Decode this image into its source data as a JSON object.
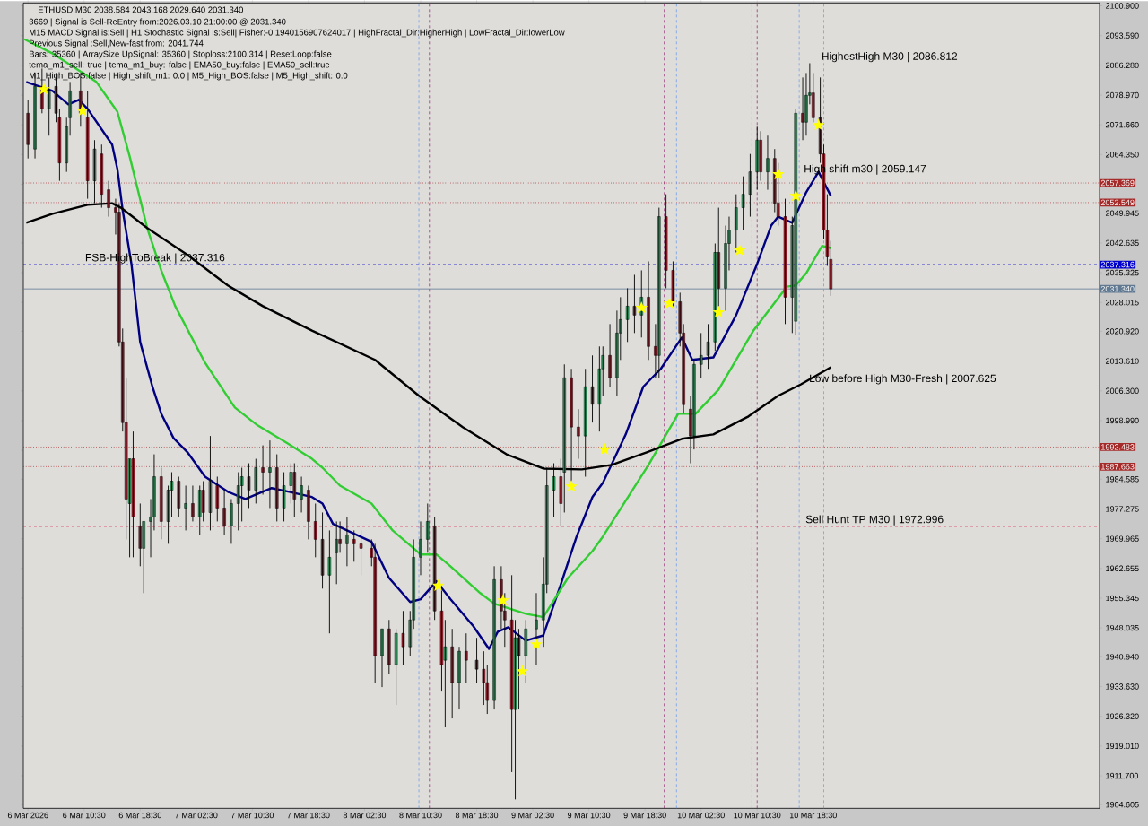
{
  "chart_data": {
    "type": "candlestick",
    "title": "ETHUSD,M30  2038.584 2043.168 2029.640 2031.340",
    "annotations": [
      "3669 | Signal is Sell-ReEntry from:2026.03.10 21:00:00 @ 2031.340",
      "M15 MACD Signal is:Sell | H1 Stochastic Signal is:Sell| Fisher:-0.1940156907624017 | HighFractal_Dir:HigherHigh | LowFractal_Dir:lowerLow",
      "Previous Signal :Sell,New-fast from: 2041.744",
      "Bars: 35360 | ArraySize UpSignal: 35360 | Stoploss:2100.314 | ResetLoop:false",
      "tema_m1_sell: true | tema_m1_buy: false | EMA50_buy:false | EMA50_sell:true",
      "M1_High_BOS:false | High_shift_m1: 0.0 | M5_High_BOS:false | M5_High_shift: 0.0",
      {
        "text": "HighestHigh    M30 | 2086.812",
        "x": "2026-03-10T19:30",
        "y": 2086.812
      },
      {
        "text": "High shift m30 | 2059.147",
        "x": "2026-03-10T17:00",
        "y": 2059.147
      },
      {
        "text": "Low before High    M30-Fresh | 2007.625",
        "x": "2026-03-10T17:45",
        "y": 2007.625
      },
      {
        "text": "FSB-HighToBreak | 2037.316",
        "x": "2026-03-06T10:30",
        "y": 2037.316
      },
      {
        "text": "Sell Hunt TP M30 | 1972.996",
        "x": "2026-03-10T17:15",
        "y": 1972.996
      }
    ],
    "x": [
      "2026-03-06T02:30",
      "2026-03-06T03:30",
      "2026-03-06T04:30",
      "2026-03-06T05:30",
      "2026-03-06T06:30",
      "2026-03-06T07:00",
      "2026-03-06T08:00",
      "2026-03-06T08:30",
      "2026-03-06T10:00",
      "2026-03-06T11:00",
      "2026-03-06T12:00",
      "2026-03-06T13:00",
      "2026-03-06T14:00",
      "2026-03-06T15:00",
      "2026-03-06T15:30",
      "2026-03-06T16:00",
      "2026-03-06T16:30",
      "2026-03-06T17:00",
      "2026-03-06T17:30",
      "2026-03-06T18:30",
      "2026-03-06T19:00",
      "2026-03-06T20:00",
      "2026-03-06T20:30",
      "2026-03-06T21:30",
      "2026-03-06T22:30",
      "2026-03-06T23:00",
      "2026-03-07T00:00",
      "2026-03-07T01:00",
      "2026-03-07T02:00",
      "2026-03-07T03:00",
      "2026-03-07T03:30",
      "2026-03-07T04:30",
      "2026-03-07T05:30",
      "2026-03-07T06:30",
      "2026-03-07T07:30",
      "2026-03-07T08:30",
      "2026-03-07T09:00",
      "2026-03-07T10:00",
      "2026-03-07T11:00",
      "2026-03-07T12:00",
      "2026-03-07T13:00",
      "2026-03-07T14:00",
      "2026-03-07T15:00",
      "2026-03-07T16:00",
      "2026-03-07T16:30",
      "2026-03-07T17:30",
      "2026-03-07T18:30",
      "2026-03-07T19:30",
      "2026-03-07T20:30",
      "2026-03-07T21:30",
      "2026-03-07T22:30",
      "2026-03-07T23:00",
      "2026-03-08T00:00",
      "2026-03-08T01:00",
      "2026-03-08T02:00",
      "2026-03-08T03:30",
      "2026-03-08T04:00",
      "2026-03-08T05:00",
      "2026-03-08T06:00",
      "2026-03-08T07:00",
      "2026-03-08T08:00",
      "2026-03-08T09:00",
      "2026-03-08T09:30",
      "2026-03-08T10:30",
      "2026-03-08T11:30",
      "2026-03-08T12:30",
      "2026-03-08T13:30",
      "2026-03-08T14:00",
      "2026-03-08T15:00",
      "2026-03-08T16:00",
      "2026-03-08T17:00",
      "2026-03-08T18:30",
      "2026-03-08T19:30",
      "2026-03-08T20:00",
      "2026-03-08T21:00",
      "2026-03-08T22:00",
      "2026-03-08T22:30",
      "2026-03-08T23:30",
      "2026-03-09T00:00",
      "2026-03-09T00:30",
      "2026-03-09T01:30",
      "2026-03-09T03:00",
      "2026-03-09T04:00",
      "2026-03-09T04:30",
      "2026-03-09T05:30",
      "2026-03-09T06:30",
      "2026-03-09T07:00",
      "2026-03-09T08:00",
      "2026-03-09T09:00",
      "2026-03-09T10:00",
      "2026-03-09T11:00",
      "2026-03-09T12:00",
      "2026-03-09T12:30",
      "2026-03-09T13:30",
      "2026-03-09T14:30",
      "2026-03-09T15:00",
      "2026-03-09T16:00",
      "2026-03-09T17:00",
      "2026-03-09T18:00",
      "2026-03-09T19:00",
      "2026-03-09T20:00",
      "2026-03-09T20:30",
      "2026-03-09T21:30",
      "2026-03-09T22:30",
      "2026-03-09T23:30",
      "2026-03-10T00:00",
      "2026-03-10T01:00",
      "2026-03-10T01:30",
      "2026-03-10T02:30",
      "2026-03-10T03:30",
      "2026-03-10T04:30",
      "2026-03-10T05:00",
      "2026-03-10T06:00",
      "2026-03-10T06:30",
      "2026-03-10T07:30",
      "2026-03-10T08:30",
      "2026-03-10T09:30",
      "2026-03-10T10:30",
      "2026-03-10T11:00",
      "2026-03-10T12:00",
      "2026-03-10T13:00",
      "2026-03-10T13:30",
      "2026-03-10T14:30",
      "2026-03-10T15:30",
      "2026-03-10T16:00",
      "2026-03-10T17:00",
      "2026-03-10T17:30",
      "2026-03-10T18:00",
      "2026-03-10T18:30",
      "2026-03-10T19:30",
      "2026-03-10T20:00",
      "2026-03-10T20:30",
      "2026-03-10T21:00"
    ],
    "ohlc": [
      [
        2074.5,
        2077.8,
        2063.4,
        2066.8
      ],
      [
        2065.7,
        2084.4,
        2063.4,
        2081.1
      ],
      [
        2081.1,
        2085.5,
        2074.5,
        2075.6
      ],
      [
        2075.6,
        2083.3,
        2069.0,
        2080.0
      ],
      [
        2081.1,
        2084.4,
        2072.3,
        2074.5
      ],
      [
        2073.4,
        2075.6,
        2057.9,
        2062.3
      ],
      [
        2062.3,
        2073.4,
        2060.1,
        2071.2
      ],
      [
        2073.4,
        2082.2,
        2069.0,
        2080.0
      ],
      [
        2080.0,
        2084.4,
        2071.2,
        2074.5
      ],
      [
        2073.4,
        2080.0,
        2053.5,
        2057.9
      ],
      [
        2057.9,
        2067.9,
        2052.4,
        2065.7
      ],
      [
        2064.5,
        2066.8,
        2051.3,
        2054.6
      ],
      [
        2055.7,
        2057.9,
        2049.1,
        2051.3
      ],
      [
        2051.3,
        2053.5,
        2044.7,
        2050.2
      ],
      [
        2050.2,
        2052.4,
        2017.2,
        2018.3
      ],
      [
        2018.3,
        2021.6,
        1996.3,
        1998.5
      ],
      [
        1998.5,
        2009.5,
        1969.8,
        1979.7
      ],
      [
        1978.6,
        1989.6,
        1965.4,
        1989.6
      ],
      [
        1989.6,
        1996.3,
        1965.4,
        1975.3
      ],
      [
        1973.1,
        1978.6,
        1963.2,
        1967.6
      ],
      [
        1967.6,
        1974.2,
        1956.6,
        1974.2
      ],
      [
        1974.2,
        1979.7,
        1965.4,
        1975.3
      ],
      [
        1975.3,
        1990.7,
        1972.0,
        1985.2
      ],
      [
        1985.2,
        1987.4,
        1969.8,
        1974.2
      ],
      [
        1974.2,
        1983.0,
        1968.7,
        1981.9
      ],
      [
        1981.9,
        1986.3,
        1975.3,
        1984.1
      ],
      [
        1984.1,
        1985.2,
        1975.3,
        1977.5
      ],
      [
        1977.5,
        1983.0,
        1972.0,
        1978.6
      ],
      [
        1978.6,
        1983.0,
        1974.2,
        1975.3
      ],
      [
        1975.3,
        1983.0,
        1970.9,
        1981.9
      ],
      [
        1981.9,
        1984.1,
        1974.2,
        1976.4
      ],
      [
        1976.4,
        1995.2,
        1972.0,
        1984.1
      ],
      [
        1983.0,
        1985.2,
        1974.2,
        1977.5
      ],
      [
        1977.5,
        1981.9,
        1970.9,
        1973.1
      ],
      [
        1973.1,
        1979.7,
        1968.7,
        1978.6
      ],
      [
        1978.6,
        1986.3,
        1972.0,
        1983.0
      ],
      [
        1983.0,
        1987.4,
        1974.2,
        1985.2
      ],
      [
        1985.2,
        1988.5,
        1977.5,
        1981.9
      ],
      [
        1981.9,
        1989.6,
        1978.6,
        1987.4
      ],
      [
        1987.4,
        1992.9,
        1980.8,
        1986.3
      ],
      [
        1986.3,
        1994.1,
        1977.5,
        1987.4
      ],
      [
        1987.4,
        1990.7,
        1974.2,
        1977.5
      ],
      [
        1977.5,
        1986.3,
        1974.2,
        1983.0
      ],
      [
        1983.0,
        1988.5,
        1978.6,
        1986.3
      ],
      [
        1986.3,
        1988.5,
        1975.3,
        1979.7
      ],
      [
        1979.7,
        1985.2,
        1976.4,
        1983.0
      ],
      [
        1981.9,
        1983.0,
        1969.8,
        1974.2
      ],
      [
        1974.2,
        1978.6,
        1965.4,
        1969.8
      ],
      [
        1969.8,
        1976.4,
        1957.7,
        1961.0
      ],
      [
        1961.0,
        1972.0,
        1946.7,
        1965.4
      ],
      [
        1966.5,
        1974.2,
        1958.8,
        1969.8
      ],
      [
        1969.8,
        1974.2,
        1966.5,
        1968.7
      ],
      [
        1968.7,
        1975.3,
        1963.2,
        1970.9
      ],
      [
        1969.8,
        1972.0,
        1964.3,
        1968.7
      ],
      [
        1968.7,
        1972.0,
        1961.0,
        1967.6
      ],
      [
        1967.6,
        1969.8,
        1963.2,
        1965.4
      ],
      [
        1965.4,
        1968.7,
        1934.6,
        1941.2
      ],
      [
        1941.2,
        1947.8,
        1933.5,
        1947.8
      ],
      [
        1947.8,
        1950.0,
        1936.8,
        1939.0
      ],
      [
        1939.0,
        1947.8,
        1929.1,
        1946.7
      ],
      [
        1946.7,
        1952.2,
        1939.0,
        1943.4
      ],
      [
        1943.4,
        1952.2,
        1941.2,
        1950.0
      ],
      [
        1950.0,
        1969.8,
        1947.8,
        1965.4
      ],
      [
        1965.4,
        1974.2,
        1961.0,
        1969.8
      ],
      [
        1969.8,
        1978.6,
        1966.5,
        1974.2
      ],
      [
        1973.1,
        1975.3,
        1950.0,
        1952.2
      ],
      [
        1952.2,
        1958.8,
        1932.4,
        1939.0
      ],
      [
        1940.1,
        1950.0,
        1923.6,
        1943.4
      ],
      [
        1943.4,
        1947.8,
        1925.8,
        1934.6
      ],
      [
        1934.6,
        1943.4,
        1928.0,
        1942.3
      ],
      [
        1942.3,
        1946.7,
        1934.6,
        1940.1
      ],
      [
        1940.1,
        1945.6,
        1934.6,
        1937.9
      ],
      [
        1937.9,
        1942.3,
        1929.1,
        1934.6
      ],
      [
        1934.6,
        1939.0,
        1926.9,
        1930.2
      ],
      [
        1930.2,
        1963.2,
        1928.0,
        1959.9
      ],
      [
        1959.9,
        1963.2,
        1947.8,
        1952.2
      ],
      [
        1952.2,
        1956.6,
        1943.4,
        1950.0
      ],
      [
        1950.0,
        1961.0,
        1912.6,
        1928.0
      ],
      [
        1928.0,
        1950.0,
        1905.9,
        1945.6
      ],
      [
        1945.6,
        1947.8,
        1928.0,
        1941.2
      ],
      [
        1941.2,
        1950.0,
        1934.6,
        1947.8
      ],
      [
        1947.8,
        1956.6,
        1939.0,
        1950.0
      ],
      [
        1950.0,
        1965.4,
        1943.4,
        1958.8
      ],
      [
        1958.8,
        1987.4,
        1956.6,
        1983.0
      ],
      [
        1981.9,
        1988.5,
        1975.3,
        1985.2
      ],
      [
        1985.2,
        1989.6,
        1973.1,
        1978.6
      ],
      [
        1986.3,
        2012.8,
        1976.4,
        2009.5
      ],
      [
        2009.5,
        2011.7,
        1984.1,
        1997.4
      ],
      [
        1997.4,
        2001.8,
        1989.6,
        1995.2
      ],
      [
        1995.2,
        2011.7,
        1985.2,
        2007.3
      ],
      [
        2007.3,
        2015.0,
        1998.5,
        2003.0
      ],
      [
        2003.0,
        2017.2,
        1996.3,
        2011.7
      ],
      [
        2011.7,
        2017.2,
        2005.1,
        2015.0
      ],
      [
        2015.0,
        2022.7,
        2007.3,
        2009.5
      ],
      [
        2009.5,
        2026.0,
        2005.1,
        2020.5
      ],
      [
        2020.5,
        2029.3,
        2013.9,
        2023.8
      ],
      [
        2023.8,
        2031.5,
        2018.3,
        2027.1
      ],
      [
        2027.1,
        2034.8,
        2020.5,
        2024.9
      ],
      [
        2024.9,
        2035.9,
        2019.4,
        2029.3
      ],
      [
        2029.3,
        2038.1,
        2013.9,
        2017.2
      ],
      [
        2017.2,
        2022.7,
        2009.5,
        2015.0
      ],
      [
        2015.0,
        2051.3,
        2009.5,
        2049.1
      ],
      [
        2049.1,
        2054.6,
        2031.5,
        2035.9
      ],
      [
        2035.9,
        2038.1,
        2027.1,
        2028.2
      ],
      [
        2028.2,
        2030.4,
        2017.2,
        2020.5
      ],
      [
        2020.5,
        2022.7,
        2000.7,
        2002.9
      ],
      [
        2001.8,
        2005.1,
        1988.5,
        1995.2
      ],
      [
        1995.2,
        2013.9,
        1991.9,
        2012.8
      ],
      [
        2012.8,
        2020.5,
        2009.5,
        2015.0
      ],
      [
        2015.0,
        2022.7,
        2011.7,
        2018.3
      ],
      [
        2018.3,
        2042.5,
        2016.1,
        2040.3
      ],
      [
        2040.3,
        2051.3,
        2027.1,
        2031.5
      ],
      [
        2031.5,
        2046.9,
        2026.0,
        2042.5
      ],
      [
        2042.5,
        2049.1,
        2035.9,
        2045.8
      ],
      [
        2045.8,
        2054.6,
        2040.3,
        2051.3
      ],
      [
        2051.3,
        2059.0,
        2045.8,
        2054.6
      ],
      [
        2054.6,
        2064.5,
        2049.1,
        2060.1
      ],
      [
        2060.1,
        2071.2,
        2055.7,
        2067.9
      ],
      [
        2067.9,
        2070.1,
        2057.9,
        2060.1
      ],
      [
        2060.1,
        2069.0,
        2055.7,
        2063.4
      ],
      [
        2063.4,
        2065.7,
        2050.2,
        2052.4
      ],
      [
        2052.4,
        2062.3,
        2046.9,
        2049.1
      ],
      [
        2049.1,
        2053.5,
        2022.7,
        2029.3
      ],
      [
        2029.3,
        2049.1,
        2020.5,
        2046.9
      ],
      [
        2023.4,
        2075.6,
        2020.0,
        2074.5
      ],
      [
        2074.5,
        2083.3,
        2067.9,
        2072.3
      ],
      [
        2072.3,
        2084.4,
        2069.0,
        2078.9
      ],
      [
        2078.9,
        2086.8,
        2076.7,
        2079.5
      ],
      [
        2079.5,
        2084.4,
        2072.3,
        2073.4
      ],
      [
        2073.4,
        2083.3,
        2062.3,
        2064.5
      ],
      [
        2064.5,
        2066.8,
        2043.6,
        2045.8
      ],
      [
        2045.8,
        2054.6,
        2037.0,
        2039.2
      ],
      [
        2038.584,
        2043.168,
        2029.64,
        2031.34
      ]
    ],
    "series": [
      {
        "type": "line",
        "color": "#000080",
        "x": [
          "2026-03-06T02:15",
          "2026-03-06T06:00",
          "2026-03-06T08:15",
          "2026-03-06T09:45",
          "2026-03-06T11:00",
          "2026-03-06T12:45",
          "2026-03-06T14:30",
          "2026-03-06T15:15",
          "2026-03-06T16:00",
          "2026-03-06T17:15",
          "2026-03-06T18:30",
          "2026-03-06T20:15",
          "2026-03-06T21:30",
          "2026-03-06T23:15",
          "2026-03-07T01:15",
          "2026-03-07T03:45",
          "2026-03-07T07:00",
          "2026-03-07T09:30",
          "2026-03-07T13:15",
          "2026-03-07T15:45",
          "2026-03-07T19:00",
          "2026-03-07T20:30",
          "2026-03-07T22:00",
          "2026-03-08T03:30",
          "2026-03-08T06:00",
          "2026-03-08T09:00",
          "2026-03-08T10:30",
          "2026-03-08T12:45",
          "2026-03-08T14:45",
          "2026-03-08T18:00",
          "2026-03-08T20:15",
          "2026-03-08T21:30",
          "2026-03-08T23:00",
          "2026-03-09T01:30",
          "2026-03-09T04:00",
          "2026-03-09T06:30",
          "2026-03-09T08:45",
          "2026-03-09T11:00",
          "2026-03-09T12:30",
          "2026-03-09T15:45",
          "2026-03-09T18:15",
          "2026-03-09T20:45",
          "2026-03-09T23:45",
          "2026-03-10T01:15",
          "2026-03-10T04:15",
          "2026-03-10T07:30",
          "2026-03-10T10:30",
          "2026-03-10T12:30",
          "2026-03-10T13:30",
          "2026-03-10T15:30",
          "2026-03-10T17:30",
          "2026-03-10T19:15",
          "2026-03-10T21:00"
        ],
        "values": [
          2082.2,
          2080.0,
          2076.7,
          2077.8,
          2075.6,
          2071.2,
          2066.8,
          2060.8,
          2050.7,
          2037.5,
          2018.3,
          2007.3,
          2000.7,
          1994.7,
          1991.2,
          1985.2,
          1981.5,
          1979.7,
          1982.4,
          1981.5,
          1980.2,
          1978.6,
          1973.6,
          1969.2,
          1960.3,
          1954.4,
          1955.1,
          1959.5,
          1955.1,
          1948.5,
          1942.9,
          1947.1,
          1948.2,
          1944.9,
          1946.2,
          1958.8,
          1970.5,
          1980.2,
          1983.7,
          1995.6,
          2007.3,
          2011.7,
          2019.4,
          2013.9,
          2014.5,
          2024.9,
          2037.5,
          2046.9,
          2049.1,
          2047.6,
          2055.1,
          2060.1,
          2054.2
        ]
      },
      {
        "type": "line",
        "color": "#32cd32",
        "x": [
          "2026-03-06T02:00",
          "2026-03-06T06:00",
          "2026-03-06T12:15",
          "2026-03-06T15:15",
          "2026-03-06T17:00",
          "2026-03-06T19:30",
          "2026-03-06T21:30",
          "2026-03-06T23:30",
          "2026-03-07T03:45",
          "2026-03-07T08:00",
          "2026-03-07T11:15",
          "2026-03-07T15:30",
          "2026-03-07T19:00",
          "2026-03-07T20:30",
          "2026-03-07T23:00",
          "2026-03-08T03:30",
          "2026-03-08T06:30",
          "2026-03-08T10:30",
          "2026-03-08T12:45",
          "2026-03-08T14:45",
          "2026-03-08T19:00",
          "2026-03-08T21:00",
          "2026-03-09T01:30",
          "2026-03-09T04:00",
          "2026-03-09T07:30",
          "2026-03-09T11:00",
          "2026-03-09T12:30",
          "2026-03-09T19:00",
          "2026-03-09T23:15",
          "2026-03-10T01:45",
          "2026-03-10T05:00",
          "2026-03-10T10:00",
          "2026-03-10T14:45",
          "2026-03-10T16:00",
          "2026-03-10T17:30",
          "2026-03-10T19:45",
          "2026-03-10T21:00"
        ],
        "values": [
          2092.7,
          2089.2,
          2082.2,
          2074.9,
          2063.9,
          2046.3,
          2035.9,
          2027.1,
          2013.2,
          2002.2,
          1997.8,
          1993.4,
          1989.6,
          1987.4,
          1983.0,
          1978.6,
          1972.0,
          1966.1,
          1966.1,
          1963.2,
          1956.6,
          1954.0,
          1951.5,
          1950.7,
          1960.3,
          1966.9,
          1970.5,
          1988.1,
          2000.7,
          2000.7,
          2006.6,
          2021.2,
          2031.9,
          2032.2,
          2035.2,
          2041.9,
          2041.4
        ]
      },
      {
        "type": "line",
        "color": "#000000",
        "x": [
          "2026-03-06T02:15",
          "2026-03-06T06:00",
          "2026-03-06T11:00",
          "2026-03-06T14:30",
          "2026-03-06T15:45",
          "2026-03-06T19:30",
          "2026-03-07T01:15",
          "2026-03-07T07:00",
          "2026-03-07T12:00",
          "2026-03-07T19:00",
          "2026-03-08T04:00",
          "2026-03-08T10:15",
          "2026-03-08T16:30",
          "2026-03-08T22:45",
          "2026-03-09T04:00",
          "2026-03-09T09:30",
          "2026-03-09T13:45",
          "2026-03-09T18:45",
          "2026-03-09T23:45",
          "2026-03-10T04:15",
          "2026-03-10T09:15",
          "2026-03-10T13:30",
          "2026-03-10T16:45",
          "2026-03-10T21:00"
        ],
        "values": [
          2047.6,
          2049.8,
          2052.0,
          2052.4,
          2051.3,
          2046.3,
          2039.7,
          2032.2,
          2027.1,
          2021.1,
          2013.9,
          2005.1,
          1997.4,
          1990.7,
          1987.2,
          1987.0,
          1988.1,
          1991.2,
          1994.5,
          1995.6,
          2000.0,
          2005.1,
          2007.9,
          2012.1
        ]
      },
      {
        "type": "scatter",
        "marker": "star",
        "color": "#ffff00",
        "x": [
          "2026-03-06T04:45",
          "2026-03-06T10:15",
          "2026-03-08T13:00",
          "2026-03-08T22:15",
          "2026-03-09T01:00",
          "2026-03-09T03:00",
          "2026-03-09T08:00",
          "2026-03-09T12:45",
          "2026-03-09T18:00",
          "2026-03-09T22:00",
          "2026-03-10T05:00",
          "2026-03-10T08:00",
          "2026-03-10T13:30",
          "2026-03-10T16:00",
          "2026-03-10T19:15"
        ],
        "values": [
          2080.4,
          2075.1,
          1958.4,
          1954.8,
          1937.4,
          1944.0,
          1982.8,
          1991.9,
          2026.7,
          2027.8,
          2025.6,
          2040.8,
          2059.5,
          2054.2,
          2071.6
        ]
      }
    ],
    "ref_lines": [
      {
        "axis": "y",
        "value": 2057.369,
        "label": "2057.369",
        "color": "#a52a2a",
        "line_style": "dotted"
      },
      {
        "axis": "y",
        "value": 2052.549,
        "label": "2052.549",
        "color": "#a52a2a",
        "line_style": "dotted"
      },
      {
        "axis": "y",
        "value": 2037.316,
        "label": "2037.316",
        "color": "#0000cd",
        "line_style": "dashed"
      },
      {
        "axis": "y",
        "value": 2031.34,
        "label": "2031.340",
        "color": "#607890",
        "line_style": "solid"
      },
      {
        "axis": "y",
        "value": 1992.483,
        "label": "1992.483",
        "color": "#a52a2a",
        "line_style": "dotted"
      },
      {
        "axis": "y",
        "value": 1987.663,
        "label": "1987.663",
        "color": "#a52a2a",
        "line_style": "dotted"
      },
      {
        "axis": "y",
        "value": 1972.996,
        "color": "#dc143c",
        "line_style": "dashed"
      },
      {
        "axis": "x",
        "value": "2026-03-08T10:15",
        "color": "#6495ed",
        "line_style": "dashed"
      },
      {
        "axis": "x",
        "value": "2026-03-08T11:45",
        "color": "#8b1a6b",
        "line_style": "dashed"
      },
      {
        "axis": "x",
        "value": "2026-03-09T21:15",
        "color": "#8b1a6b",
        "line_style": "dashed"
      },
      {
        "axis": "x",
        "value": "2026-03-09T23:00",
        "color": "#6495ed",
        "line_style": "dashed"
      },
      {
        "axis": "x",
        "value": "2026-03-10T09:45",
        "color": "#6495ed",
        "line_style": "dashed"
      },
      {
        "axis": "x",
        "value": "2026-03-10T10:30",
        "color": "#8b1a6b",
        "line_style": "dashed"
      },
      {
        "axis": "x",
        "value": "2026-03-10T16:30",
        "color": "#6495ed",
        "line_style": "dashed"
      },
      {
        "axis": "x",
        "value": "2026-03-10T20:00",
        "color": "#6495ed",
        "line_style": "dashed"
      }
    ],
    "xlim": [
      "2026-03-06T01:50",
      "2026-03-12T11:20"
    ],
    "ylim": [
      1903.7,
      2101.6
    ],
    "xticks": [
      {
        "value": "2026-03-06T02:30",
        "label": "6 Mar 2026"
      },
      {
        "value": "2026-03-06T10:30",
        "label": "6 Mar 10:30"
      },
      {
        "value": "2026-03-06T18:30",
        "label": "6 Mar 18:30"
      },
      {
        "value": "2026-03-07T02:30",
        "label": "7 Mar 02:30"
      },
      {
        "value": "2026-03-07T10:30",
        "label": "7 Mar 10:30"
      },
      {
        "value": "2026-03-07T18:30",
        "label": "7 Mar 18:30"
      },
      {
        "value": "2026-03-08T02:30",
        "label": "8 Mar 02:30"
      },
      {
        "value": "2026-03-08T10:30",
        "label": "8 Mar 10:30"
      },
      {
        "value": "2026-03-08T18:30",
        "label": "8 Mar 18:30"
      },
      {
        "value": "2026-03-09T02:30",
        "label": "9 Mar 02:30"
      },
      {
        "value": "2026-03-09T10:30",
        "label": "9 Mar 10:30"
      },
      {
        "value": "2026-03-09T18:30",
        "label": "9 Mar 18:30"
      },
      {
        "value": "2026-03-10T02:30",
        "label": "10 Mar 02:30"
      },
      {
        "value": "2026-03-10T10:30",
        "label": "10 Mar 10:30"
      },
      {
        "value": "2026-03-10T18:30",
        "label": "10 Mar 18:30"
      }
    ],
    "yticks": [
      {
        "value": 2100.9,
        "label": "2100.900"
      },
      {
        "value": 2093.59,
        "label": "2093.590"
      },
      {
        "value": 2086.28,
        "label": "2086.280"
      },
      {
        "value": 2078.97,
        "label": "2078.970"
      },
      {
        "value": 2071.66,
        "label": "2071.660"
      },
      {
        "value": 2064.35,
        "label": "2064.350"
      },
      {
        "value": 2057.04,
        "label": null
      },
      {
        "value": 2049.945,
        "label": "2049.945"
      },
      {
        "value": 2042.635,
        "label": "2042.635"
      },
      {
        "value": 2035.325,
        "label": "2035.325"
      },
      {
        "value": 2028.015,
        "label": "2028.015"
      },
      {
        "value": 2020.92,
        "label": "2020.920"
      },
      {
        "value": 2013.61,
        "label": "2013.610"
      },
      {
        "value": 2006.3,
        "label": "2006.300"
      },
      {
        "value": 1998.99,
        "label": "1998.990"
      },
      {
        "value": 1991.68,
        "label": null
      },
      {
        "value": 1984.585,
        "label": "1984.585"
      },
      {
        "value": 1977.275,
        "label": "1977.275"
      },
      {
        "value": 1969.965,
        "label": "1969.965"
      },
      {
        "value": 1962.655,
        "label": "1962.655"
      },
      {
        "value": 1955.345,
        "label": "1955.345"
      },
      {
        "value": 1948.035,
        "label": "1948.035"
      },
      {
        "value": 1940.94,
        "label": "1940.940"
      },
      {
        "value": 1933.63,
        "label": "1933.630"
      },
      {
        "value": 1926.32,
        "label": "1926.320"
      },
      {
        "value": 1919.01,
        "label": "1919.010"
      },
      {
        "value": 1911.7,
        "label": "1911.700"
      },
      {
        "value": 1904.605,
        "label": "1904.605"
      }
    ]
  }
}
